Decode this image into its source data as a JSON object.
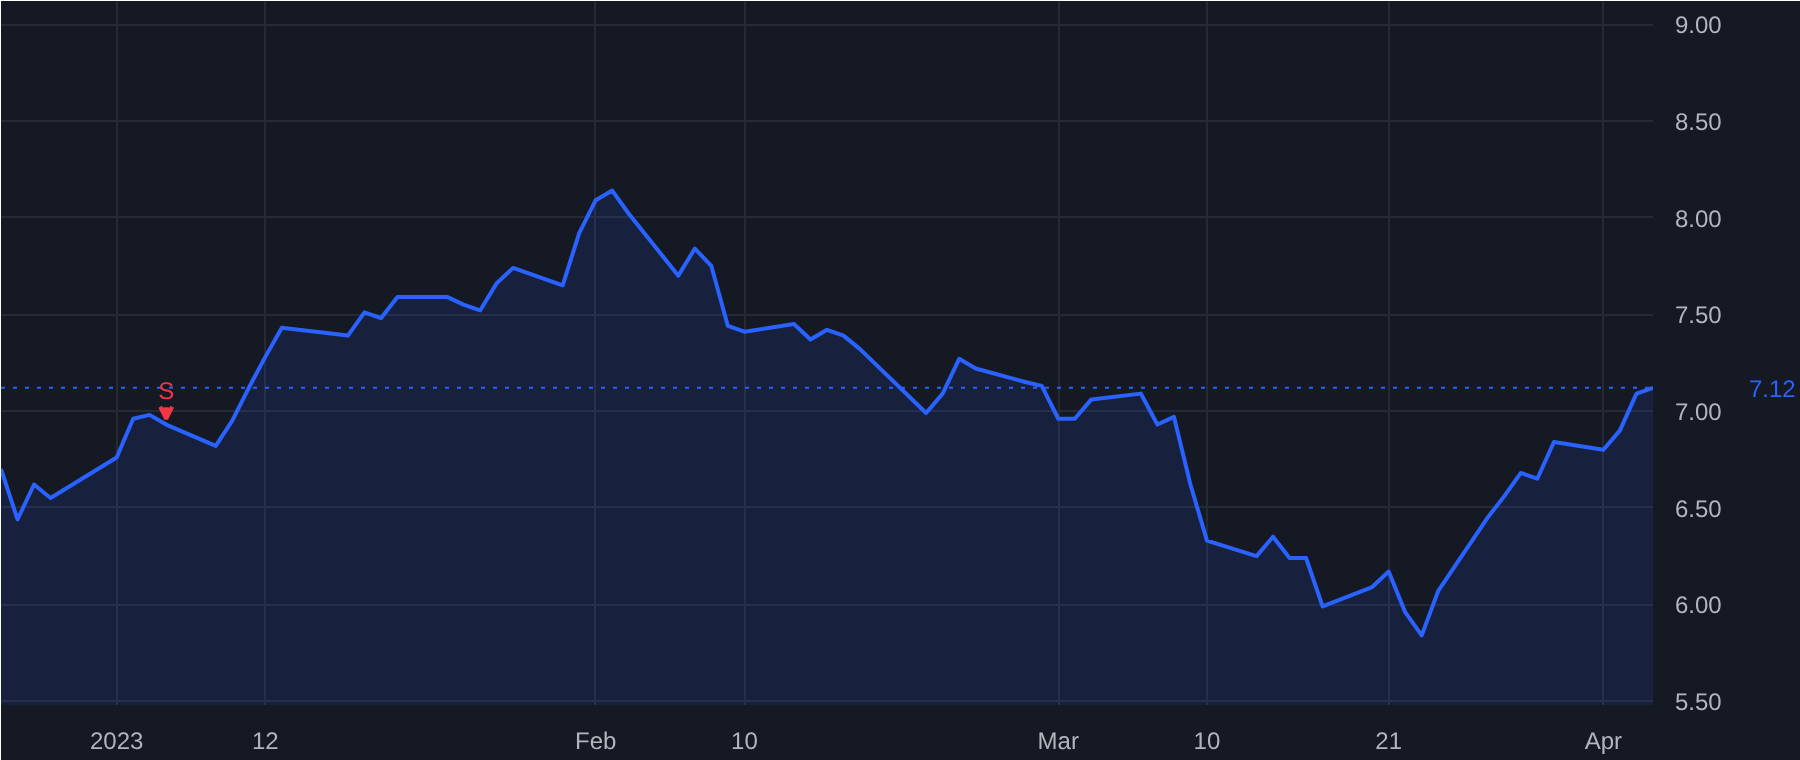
{
  "chart_data": {
    "type": "area",
    "x": [
      "2022-12-27",
      "2022-12-28",
      "2022-12-29",
      "2022-12-30",
      "2023-01-03",
      "2023-01-04",
      "2023-01-05",
      "2023-01-06",
      "2023-01-09",
      "2023-01-10",
      "2023-01-11",
      "2023-01-12",
      "2023-01-13",
      "2023-01-17",
      "2023-01-18",
      "2023-01-19",
      "2023-01-20",
      "2023-01-23",
      "2023-01-24",
      "2023-01-25",
      "2023-01-26",
      "2023-01-27",
      "2023-01-30",
      "2023-01-31",
      "2023-02-01",
      "2023-02-02",
      "2023-02-03",
      "2023-02-06",
      "2023-02-07",
      "2023-02-08",
      "2023-02-09",
      "2023-02-10",
      "2023-02-13",
      "2023-02-14",
      "2023-02-15",
      "2023-02-16",
      "2023-02-17",
      "2023-02-21",
      "2023-02-22",
      "2023-02-23",
      "2023-02-24",
      "2023-02-27",
      "2023-02-28",
      "2023-03-01",
      "2023-03-02",
      "2023-03-03",
      "2023-03-06",
      "2023-03-07",
      "2023-03-08",
      "2023-03-09",
      "2023-03-10",
      "2023-03-13",
      "2023-03-14",
      "2023-03-15",
      "2023-03-16",
      "2023-03-17",
      "2023-03-20",
      "2023-03-21",
      "2023-03-22",
      "2023-03-23",
      "2023-03-24",
      "2023-03-27",
      "2023-03-28",
      "2023-03-29",
      "2023-03-30",
      "2023-03-31",
      "2023-04-03",
      "2023-04-04",
      "2023-04-05",
      "2023-04-06"
    ],
    "series": [
      {
        "color": "#2962ff",
        "values": [
          6.7,
          6.44,
          6.62,
          6.55,
          6.76,
          6.96,
          6.98,
          6.93,
          6.82,
          6.95,
          7.12,
          7.28,
          7.43,
          7.39,
          7.51,
          7.48,
          7.59,
          7.59,
          7.55,
          7.52,
          7.66,
          7.74,
          7.65,
          7.92,
          8.09,
          8.14,
          8.02,
          7.7,
          7.84,
          7.75,
          7.44,
          7.41,
          7.45,
          7.37,
          7.42,
          7.39,
          7.32,
          6.99,
          7.09,
          7.27,
          7.22,
          7.15,
          7.13,
          6.96,
          6.96,
          7.06,
          7.09,
          6.93,
          6.97,
          6.62,
          6.33,
          6.25,
          6.35,
          6.24,
          6.24,
          5.99,
          6.09,
          6.17,
          5.96,
          5.84,
          6.07,
          6.45,
          6.56,
          6.68,
          6.65,
          6.84,
          6.8,
          6.9,
          7.09,
          7.12
        ]
      }
    ],
    "xlim": [
      "2022-12-27",
      "2023-04-06"
    ],
    "xticks": [
      {
        "value": "2023-01-03",
        "label": "2023"
      },
      {
        "value": "2023-01-12",
        "label": "12"
      },
      {
        "value": "2023-02-01",
        "label": "Feb"
      },
      {
        "value": "2023-02-10",
        "label": "10"
      },
      {
        "value": "2023-03-01",
        "label": "Mar"
      },
      {
        "value": "2023-03-10",
        "label": "10"
      },
      {
        "value": "2023-03-21",
        "label": "21"
      },
      {
        "value": "2023-04-03",
        "label": "Apr"
      }
    ],
    "ylim": [
      5.48,
      9.12
    ],
    "yticks": [
      {
        "value": 5.5,
        "label": "5.50"
      },
      {
        "value": 6,
        "label": "6.00"
      },
      {
        "value": 6.5,
        "label": "6.50"
      },
      {
        "value": 7,
        "label": "7.00"
      },
      {
        "value": 7.5,
        "label": "7.50"
      },
      {
        "value": 8,
        "label": "8.00"
      },
      {
        "value": 8.5,
        "label": "8.50"
      },
      {
        "value": 9,
        "label": "9.00"
      }
    ],
    "grid": true,
    "ref_lines": [
      {
        "axis": "y",
        "value": 7.12,
        "label": "7.12",
        "color": "#2962ff",
        "line_style": "dotted"
      }
    ],
    "annotations": [
      {
        "text": "S",
        "x": "2023-01-06",
        "y": 6.93
      }
    ]
  }
}
